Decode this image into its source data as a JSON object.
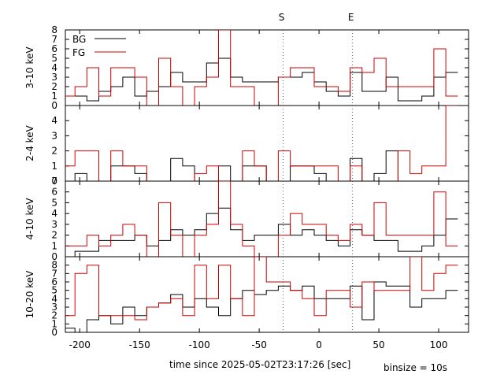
{
  "chart_data": {
    "type": "line",
    "xlabel": "time since 2025-05-02T23:17:26 [sec]",
    "binsize_label": "binsize = 10s",
    "xlim": [
      -212,
      125
    ],
    "xticks": [
      -200,
      -150,
      -100,
      -50,
      0,
      50,
      100
    ],
    "markers": [
      {
        "label": "S",
        "x": -30
      },
      {
        "label": "E",
        "x": 28
      }
    ],
    "legend": {
      "placement": "top-left",
      "entries": [
        "BG",
        "FG"
      ]
    },
    "series_colors": {
      "BG": "#000000",
      "FG": "#cc0000"
    },
    "bin_edges": [
      -214,
      -204,
      -194,
      -184,
      -174,
      -164,
      -154,
      -144,
      -134,
      -124,
      -114,
      -104,
      -94,
      -84,
      -74,
      -64,
      -54,
      -44,
      -34,
      -24,
      -14,
      -4,
      6,
      16,
      26,
      36,
      46,
      56,
      66,
      76,
      86,
      96,
      106,
      116
    ],
    "panels": [
      {
        "ylabel": "3-10 keV",
        "ylim": [
          0,
          8
        ],
        "yticks": [
          0,
          1,
          2,
          3,
          4,
          5,
          6,
          7,
          8
        ],
        "series": [
          {
            "name": "BG",
            "values": [
              1,
              1,
              0.5,
              1.5,
              2,
              3,
              1,
              1.5,
              2,
              3.5,
              2.5,
              2.5,
              4.5,
              5,
              3,
              2.5,
              2.5,
              2.5,
              3,
              3,
              3.5,
              2.5,
              1.5,
              1,
              3.5,
              1.5,
              1.5,
              3,
              0.5,
              0.5,
              1,
              3,
              3.5
            ]
          },
          {
            "name": "FG",
            "values": [
              1,
              2,
              4,
              1,
              4,
              4,
              3,
              0,
              5,
              2,
              0,
              2,
              3,
              8,
              2,
              2,
              0,
              0,
              3,
              4,
              4,
              2,
              2,
              1.5,
              4,
              3.5,
              5,
              2,
              2,
              2,
              2,
              6,
              1
            ]
          }
        ]
      },
      {
        "ylabel": "2-4 keV",
        "ylim": [
          0,
          5
        ],
        "yticks": [
          0,
          1,
          2,
          3,
          4
        ],
        "series": [
          {
            "name": "BG",
            "values": [
              0,
              0.5,
              0,
              0,
              1,
              1,
              0.5,
              0,
              0,
              1.5,
              1,
              0,
              0,
              1,
              0,
              1,
              1,
              0,
              0,
              1,
              1,
              0.5,
              0,
              0,
              1.5,
              0,
              0.5,
              2,
              0,
              0,
              0,
              0,
              0
            ]
          },
          {
            "name": "FG",
            "values": [
              1,
              2,
              2,
              0,
              2,
              1,
              1,
              0,
              0,
              0,
              0,
              0.5,
              1,
              0,
              0,
              2,
              1,
              0,
              2,
              1,
              1,
              1,
              1,
              0,
              1,
              0,
              0,
              0,
              2,
              0.5,
              1,
              1,
              5
            ]
          }
        ]
      },
      {
        "ylabel": "4-10 keV",
        "ylim": [
          0,
          7
        ],
        "yticks": [
          0,
          1,
          2,
          3,
          4,
          5,
          6,
          7
        ],
        "series": [
          {
            "name": "BG",
            "values": [
              0,
              0.5,
              0.5,
              1.5,
              1.5,
              1.5,
              2,
              1,
              1.5,
              2.5,
              2,
              2.5,
              4,
              4.5,
              2.5,
              1.5,
              2,
              2,
              3,
              2,
              2.5,
              2,
              1.5,
              1,
              2.5,
              2,
              1.5,
              1.5,
              0.5,
              0.5,
              1,
              2,
              3.5
            ]
          },
          {
            "name": "FG",
            "values": [
              1,
              1,
              2,
              1,
              2,
              3,
              2,
              0,
              5,
              2,
              0,
              2,
              3,
              7,
              3,
              1,
              0,
              0,
              2,
              4,
              3,
              3,
              2,
              1.5,
              3,
              2,
              5,
              2,
              2,
              2,
              2,
              6,
              1
            ]
          }
        ]
      },
      {
        "ylabel": "10-20 keV",
        "ylim": [
          0,
          9
        ],
        "yticks": [
          0,
          1,
          2,
          3,
          4,
          5,
          6,
          7,
          8
        ],
        "series": [
          {
            "name": "BG",
            "values": [
              0.5,
              0,
              1.5,
              2,
              1,
              3,
              2,
              3,
              3.5,
              4.5,
              3,
              4,
              3,
              2,
              4,
              5,
              4.5,
              5,
              5.5,
              5,
              5.5,
              4,
              4,
              4,
              5.5,
              1.5,
              6,
              5.5,
              5.5,
              3,
              4,
              4,
              5
            ]
          },
          {
            "name": "FG",
            "values": [
              2,
              7,
              8,
              2,
              2,
              2,
              1.5,
              3,
              3.5,
              4,
              2,
              8,
              4,
              8,
              4,
              2,
              9,
              6,
              6,
              5,
              4,
              2,
              5,
              5,
              3,
              6,
              5,
              5,
              5,
              9,
              5,
              7,
              8
            ]
          }
        ]
      }
    ]
  }
}
